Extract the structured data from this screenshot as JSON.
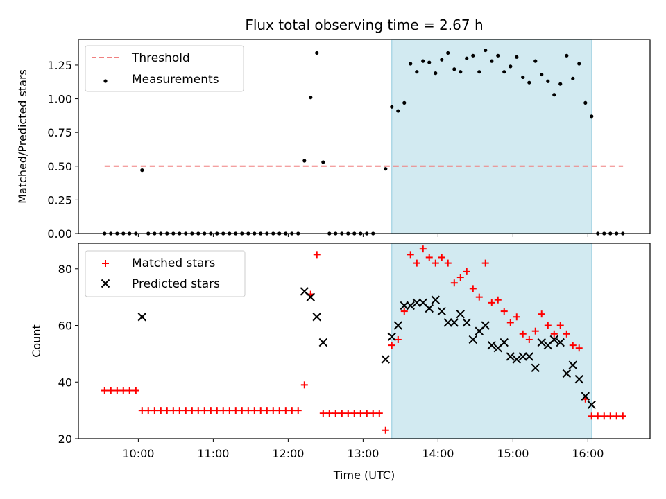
{
  "title": "Flux total observing time = 2.67 h",
  "colors": {
    "threshold": "#f08080",
    "measurement": "#000000",
    "matched": "#ff0000",
    "predicted": "#000000",
    "shade": "#add8e6"
  },
  "chart_data": [
    {
      "type": "scatter",
      "ylabel": "Matched/Predicted stars",
      "xlabel": "",
      "xlim": [
        9.2,
        16.83
      ],
      "ylim": [
        0,
        1.44
      ],
      "yticks": [
        0.0,
        0.25,
        0.5,
        0.75,
        1.0,
        1.25
      ],
      "ytick_labels": [
        "0.00",
        "0.25",
        "0.50",
        "0.75",
        "1.00",
        "1.25"
      ],
      "shaded_x": [
        13.383,
        16.05
      ],
      "legend": {
        "position": "upper left",
        "entries": [
          "Threshold",
          "Measurements"
        ]
      },
      "series": [
        {
          "name": "Threshold",
          "style": "dashed-line",
          "x": [
            9.55,
            16.47
          ],
          "y": [
            0.5,
            0.5
          ]
        },
        {
          "name": "Measurements",
          "style": "dots",
          "x": [
            9.55,
            9.633,
            9.717,
            9.8,
            9.883,
            9.967,
            10.05,
            10.133,
            10.217,
            10.3,
            10.383,
            10.467,
            10.55,
            10.633,
            10.717,
            10.8,
            10.883,
            10.967,
            11.05,
            11.133,
            11.217,
            11.3,
            11.383,
            11.467,
            11.55,
            11.633,
            11.717,
            11.8,
            11.883,
            11.967,
            12.05,
            12.133,
            12.217,
            12.3,
            12.383,
            12.467,
            12.55,
            12.633,
            12.717,
            12.8,
            12.883,
            12.967,
            13.05,
            13.133,
            13.3,
            13.383,
            13.467,
            13.55,
            13.633,
            13.717,
            13.8,
            13.883,
            13.967,
            14.05,
            14.133,
            14.217,
            14.3,
            14.383,
            14.467,
            14.55,
            14.633,
            14.717,
            14.8,
            14.883,
            14.967,
            15.05,
            15.133,
            15.217,
            15.3,
            15.383,
            15.467,
            15.55,
            15.633,
            15.717,
            15.8,
            15.883,
            15.967,
            16.05,
            16.133,
            16.217,
            16.3,
            16.383,
            16.467
          ],
          "y": [
            0,
            0,
            0,
            0,
            0,
            0,
            0.47,
            0,
            0,
            0,
            0,
            0,
            0,
            0,
            0,
            0,
            0,
            0,
            0,
            0,
            0,
            0,
            0,
            0,
            0,
            0,
            0,
            0,
            0,
            0,
            0,
            0,
            0.54,
            1.01,
            1.34,
            0.53,
            0,
            0,
            0,
            0,
            0,
            0,
            0,
            0,
            0.48,
            0.94,
            0.91,
            0.97,
            1.26,
            1.2,
            1.28,
            1.27,
            1.19,
            1.29,
            1.34,
            1.22,
            1.2,
            1.3,
            1.32,
            1.2,
            1.36,
            1.28,
            1.32,
            1.2,
            1.24,
            1.31,
            1.16,
            1.12,
            1.28,
            1.18,
            1.13,
            1.03,
            1.11,
            1.32,
            1.15,
            1.26,
            0.97,
            0.87,
            0,
            0,
            0,
            0,
            0
          ]
        }
      ]
    },
    {
      "type": "scatter",
      "ylabel": "Count",
      "xlabel": "Time (UTC)",
      "xlim": [
        9.2,
        16.83
      ],
      "ylim": [
        20,
        89
      ],
      "yticks": [
        20,
        40,
        60,
        80
      ],
      "ytick_labels": [
        "20",
        "40",
        "60",
        "80"
      ],
      "xticks": [
        10,
        11,
        12,
        13,
        14,
        15,
        16
      ],
      "xtick_labels": [
        "10:00",
        "11:00",
        "12:00",
        "13:00",
        "14:00",
        "15:00",
        "16:00"
      ],
      "shaded_x": [
        13.383,
        16.05
      ],
      "legend": {
        "position": "upper left",
        "entries": [
          "Matched stars",
          "Predicted stars"
        ]
      },
      "series": [
        {
          "name": "Matched stars",
          "style": "plus",
          "x": [
            9.55,
            9.633,
            9.717,
            9.8,
            9.883,
            9.967,
            10.05,
            10.133,
            10.217,
            10.3,
            10.383,
            10.467,
            10.55,
            10.633,
            10.717,
            10.8,
            10.883,
            10.967,
            11.05,
            11.133,
            11.217,
            11.3,
            11.383,
            11.467,
            11.55,
            11.633,
            11.717,
            11.8,
            11.883,
            11.967,
            12.05,
            12.133,
            12.217,
            12.3,
            12.383,
            12.467,
            12.55,
            12.633,
            12.717,
            12.8,
            12.883,
            12.967,
            13.05,
            13.133,
            13.217,
            13.3,
            13.383,
            13.467,
            13.55,
            13.633,
            13.717,
            13.8,
            13.883,
            13.967,
            14.05,
            14.133,
            14.217,
            14.3,
            14.383,
            14.467,
            14.55,
            14.633,
            14.717,
            14.8,
            14.883,
            14.967,
            15.05,
            15.133,
            15.217,
            15.3,
            15.383,
            15.467,
            15.55,
            15.633,
            15.717,
            15.8,
            15.883,
            15.967,
            16.05,
            16.133,
            16.217,
            16.3,
            16.383,
            16.467
          ],
          "y": [
            37,
            37,
            37,
            37,
            37,
            37,
            30,
            30,
            30,
            30,
            30,
            30,
            30,
            30,
            30,
            30,
            30,
            30,
            30,
            30,
            30,
            30,
            30,
            30,
            30,
            30,
            30,
            30,
            30,
            30,
            30,
            30,
            39,
            71,
            85,
            29,
            29,
            29,
            29,
            29,
            29,
            29,
            29,
            29,
            29,
            23,
            53,
            55,
            65,
            85,
            82,
            87,
            84,
            82,
            84,
            82,
            75,
            77,
            79,
            73,
            70,
            82,
            68,
            69,
            65,
            61,
            63,
            57,
            55,
            58,
            64,
            60,
            57,
            60,
            57,
            53,
            52,
            34,
            28,
            28,
            28,
            28,
            28,
            28
          ],
          "y_note": ""
        },
        {
          "name": "Predicted stars",
          "style": "x",
          "x": [
            10.05,
            12.217,
            12.3,
            12.383,
            12.467,
            13.3,
            13.383,
            13.467,
            13.55,
            13.633,
            13.717,
            13.8,
            13.883,
            13.967,
            14.05,
            14.133,
            14.217,
            14.3,
            14.383,
            14.467,
            14.55,
            14.633,
            14.717,
            14.8,
            14.883,
            14.967,
            15.05,
            15.133,
            15.217,
            15.3,
            15.383,
            15.467,
            15.55,
            15.633,
            15.717,
            15.8,
            15.883,
            15.967,
            16.05
          ],
          "y": [
            63,
            72,
            70,
            63,
            54,
            48,
            56,
            60,
            67,
            67,
            68,
            68,
            66,
            69,
            65,
            61,
            61,
            64,
            61,
            55,
            58,
            60,
            53,
            52,
            54,
            49,
            48,
            49,
            49,
            45,
            54,
            53,
            55,
            54,
            43,
            46,
            41,
            35,
            32
          ]
        }
      ]
    }
  ]
}
